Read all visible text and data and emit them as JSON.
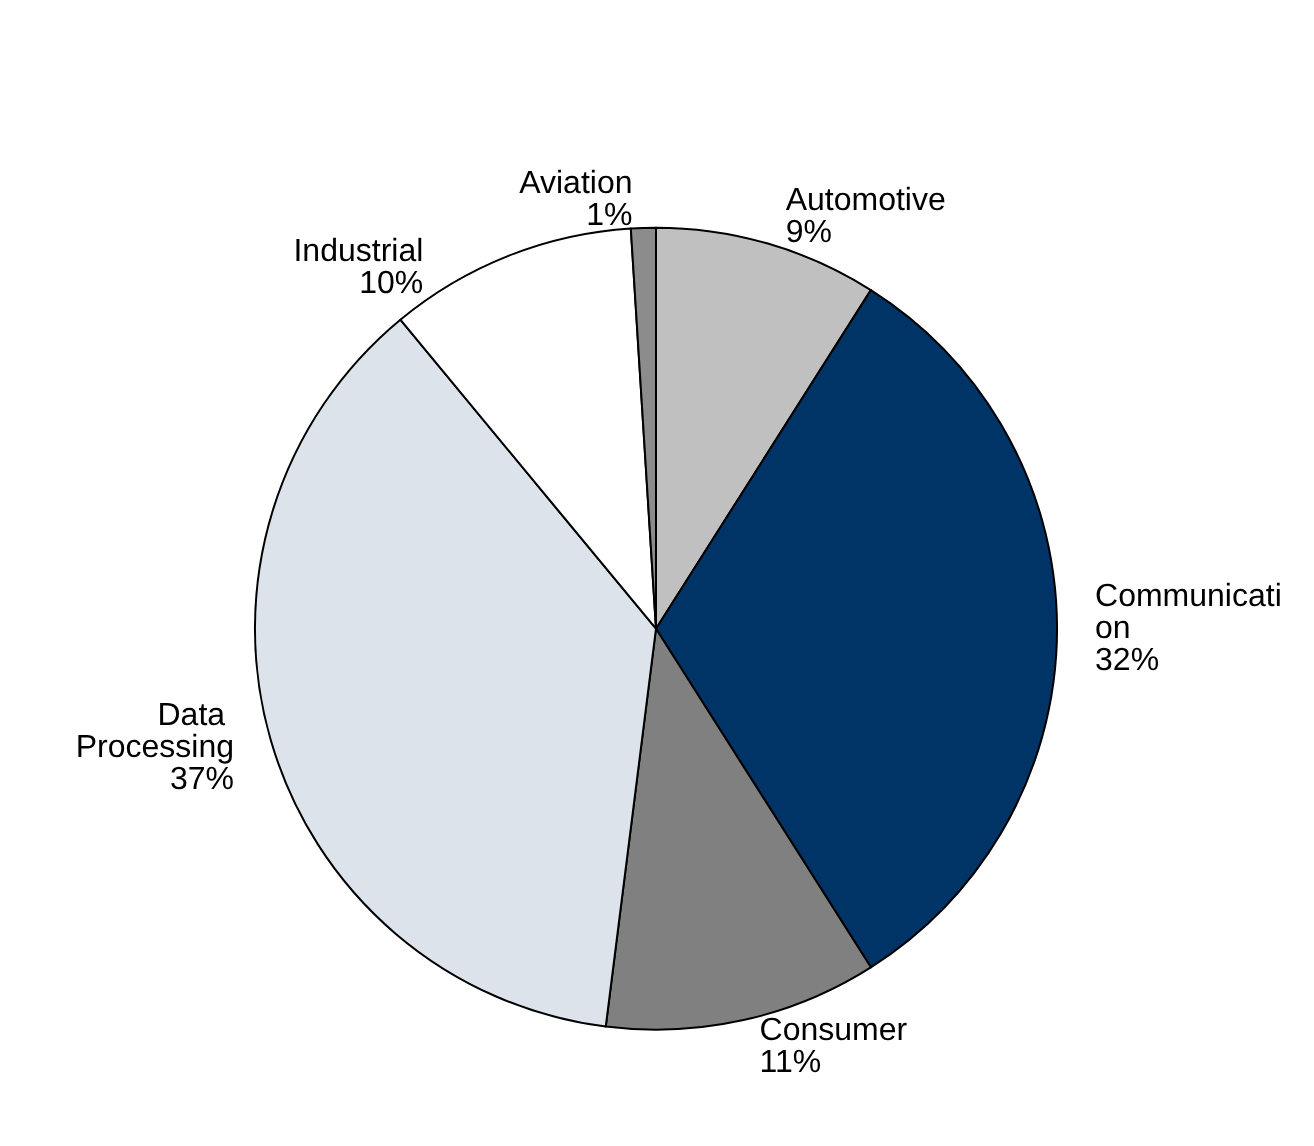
{
  "chart_data": {
    "type": "pie",
    "categories": [
      "Automotive",
      "Communication",
      "Consumer",
      "Data Processing",
      "Industrial",
      "Aviation"
    ],
    "values": [
      9,
      32,
      11,
      37,
      10,
      1
    ],
    "colors": [
      "#c0c0c0",
      "#003366",
      "#808080",
      "#dce3ea",
      "#ffffff",
      "#8c8c8c"
    ],
    "value_labels": [
      "9%",
      "32%",
      "11%",
      "37%",
      "10%",
      "1%"
    ],
    "legend": false
  }
}
